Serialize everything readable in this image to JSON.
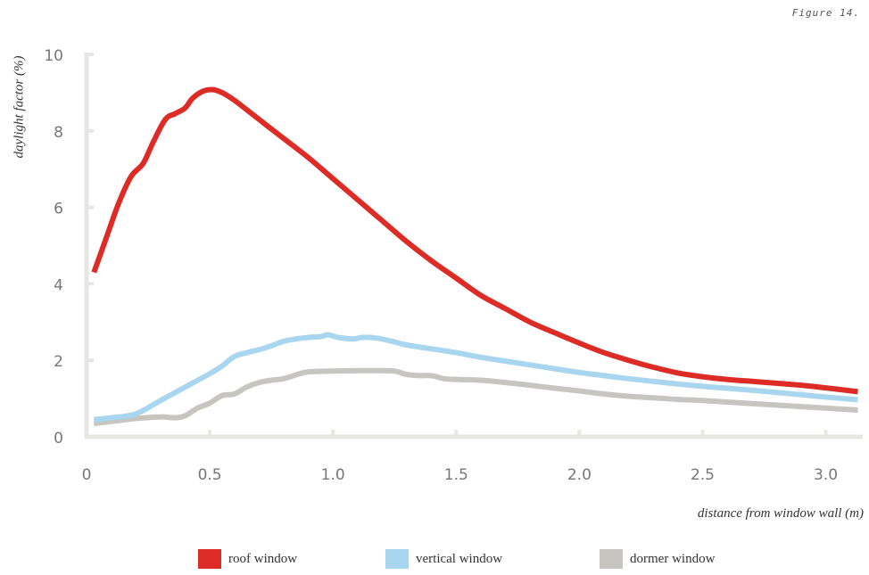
{
  "figure_label": "Figure 14.",
  "colors": {
    "roof": "#dd2b25",
    "vertical": "#a8d6ee",
    "dormer": "#c6c5c0",
    "axis": "#e6e6e3",
    "tick_text": "#777777"
  },
  "chart_data": {
    "type": "line",
    "title": "",
    "xlabel": "distance from window wall (m)",
    "ylabel": "daylight factor (%)",
    "xlim": [
      0,
      3.15
    ],
    "ylim": [
      0,
      10
    ],
    "x_ticks": [
      "0",
      "0.5",
      "1.0",
      "1.5",
      "2.0",
      "2.5",
      "3.0"
    ],
    "y_ticks": [
      "0",
      "2",
      "4",
      "6",
      "8",
      "10"
    ],
    "grid": false,
    "legend_position": "bottom",
    "series": [
      {
        "name": "roof window",
        "color": "#dd2b25",
        "points": [
          [
            0.03,
            4.3
          ],
          [
            0.08,
            5.2
          ],
          [
            0.13,
            6.1
          ],
          [
            0.18,
            6.8
          ],
          [
            0.23,
            7.15
          ],
          [
            0.27,
            7.7
          ],
          [
            0.32,
            8.3
          ],
          [
            0.36,
            8.45
          ],
          [
            0.4,
            8.6
          ],
          [
            0.43,
            8.85
          ],
          [
            0.47,
            9.03
          ],
          [
            0.51,
            9.08
          ],
          [
            0.55,
            9.0
          ],
          [
            0.6,
            8.8
          ],
          [
            0.7,
            8.3
          ],
          [
            0.8,
            7.8
          ],
          [
            0.9,
            7.3
          ],
          [
            1.0,
            6.75
          ],
          [
            1.1,
            6.2
          ],
          [
            1.2,
            5.65
          ],
          [
            1.3,
            5.1
          ],
          [
            1.4,
            4.6
          ],
          [
            1.5,
            4.15
          ],
          [
            1.6,
            3.7
          ],
          [
            1.7,
            3.35
          ],
          [
            1.8,
            3.0
          ],
          [
            1.9,
            2.72
          ],
          [
            2.0,
            2.45
          ],
          [
            2.1,
            2.2
          ],
          [
            2.2,
            2.0
          ],
          [
            2.3,
            1.82
          ],
          [
            2.4,
            1.67
          ],
          [
            2.5,
            1.57
          ],
          [
            2.6,
            1.5
          ],
          [
            2.7,
            1.45
          ],
          [
            2.8,
            1.4
          ],
          [
            2.9,
            1.35
          ],
          [
            3.0,
            1.28
          ],
          [
            3.13,
            1.18
          ]
        ]
      },
      {
        "name": "vertical window",
        "color": "#a8d6ee",
        "points": [
          [
            0.03,
            0.45
          ],
          [
            0.1,
            0.5
          ],
          [
            0.2,
            0.6
          ],
          [
            0.3,
            0.95
          ],
          [
            0.4,
            1.3
          ],
          [
            0.5,
            1.65
          ],
          [
            0.55,
            1.85
          ],
          [
            0.6,
            2.1
          ],
          [
            0.65,
            2.2
          ],
          [
            0.7,
            2.28
          ],
          [
            0.75,
            2.38
          ],
          [
            0.8,
            2.5
          ],
          [
            0.85,
            2.56
          ],
          [
            0.9,
            2.6
          ],
          [
            0.95,
            2.62
          ],
          [
            0.98,
            2.67
          ],
          [
            1.02,
            2.6
          ],
          [
            1.08,
            2.56
          ],
          [
            1.12,
            2.6
          ],
          [
            1.18,
            2.58
          ],
          [
            1.25,
            2.48
          ],
          [
            1.3,
            2.4
          ],
          [
            1.4,
            2.3
          ],
          [
            1.5,
            2.2
          ],
          [
            1.6,
            2.08
          ],
          [
            1.7,
            1.98
          ],
          [
            1.8,
            1.88
          ],
          [
            1.9,
            1.78
          ],
          [
            2.0,
            1.68
          ],
          [
            2.1,
            1.6
          ],
          [
            2.2,
            1.52
          ],
          [
            2.3,
            1.45
          ],
          [
            2.4,
            1.38
          ],
          [
            2.5,
            1.32
          ],
          [
            2.6,
            1.27
          ],
          [
            2.7,
            1.22
          ],
          [
            2.8,
            1.16
          ],
          [
            2.9,
            1.1
          ],
          [
            3.0,
            1.04
          ],
          [
            3.13,
            0.97
          ]
        ]
      },
      {
        "name": "dormer window",
        "color": "#c6c5c0",
        "points": [
          [
            0.03,
            0.35
          ],
          [
            0.1,
            0.4
          ],
          [
            0.2,
            0.48
          ],
          [
            0.3,
            0.52
          ],
          [
            0.36,
            0.5
          ],
          [
            0.4,
            0.55
          ],
          [
            0.45,
            0.75
          ],
          [
            0.5,
            0.88
          ],
          [
            0.55,
            1.08
          ],
          [
            0.6,
            1.12
          ],
          [
            0.65,
            1.3
          ],
          [
            0.7,
            1.42
          ],
          [
            0.75,
            1.48
          ],
          [
            0.8,
            1.52
          ],
          [
            0.85,
            1.62
          ],
          [
            0.9,
            1.7
          ],
          [
            1.0,
            1.72
          ],
          [
            1.1,
            1.73
          ],
          [
            1.2,
            1.73
          ],
          [
            1.25,
            1.72
          ],
          [
            1.3,
            1.63
          ],
          [
            1.35,
            1.6
          ],
          [
            1.4,
            1.6
          ],
          [
            1.45,
            1.52
          ],
          [
            1.5,
            1.5
          ],
          [
            1.6,
            1.48
          ],
          [
            1.7,
            1.42
          ],
          [
            1.8,
            1.35
          ],
          [
            1.9,
            1.27
          ],
          [
            2.0,
            1.2
          ],
          [
            2.1,
            1.12
          ],
          [
            2.2,
            1.06
          ],
          [
            2.3,
            1.02
          ],
          [
            2.4,
            0.98
          ],
          [
            2.5,
            0.95
          ],
          [
            2.6,
            0.91
          ],
          [
            2.7,
            0.87
          ],
          [
            2.8,
            0.83
          ],
          [
            2.9,
            0.79
          ],
          [
            3.0,
            0.75
          ],
          [
            3.13,
            0.7
          ]
        ]
      }
    ]
  }
}
